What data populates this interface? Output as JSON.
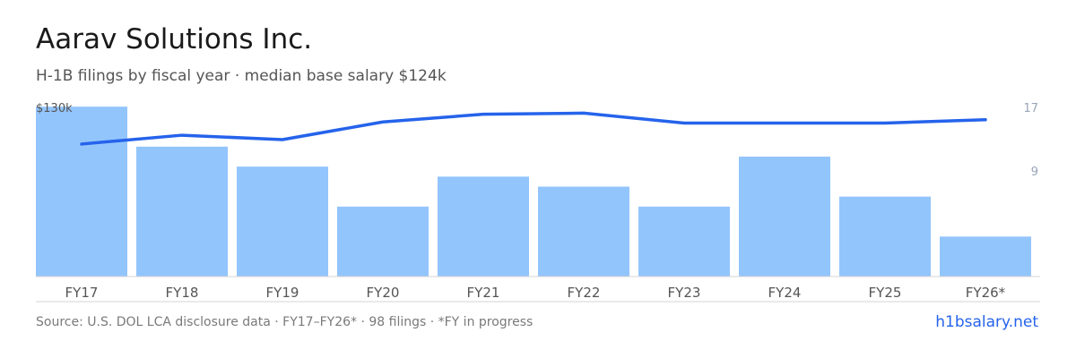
{
  "header": {
    "title": "Aarav Solutions Inc.",
    "subtitle": "H-1B filings by fiscal year · median base salary $124k"
  },
  "footer": {
    "source": "Source: U.S. DOL LCA disclosure data · FY17–FY26* · 98 filings · *FY in progress",
    "brand": "h1bsalary.net"
  },
  "colors": {
    "bar": "#93c5fd",
    "line": "#2563eb",
    "axis_text": "#555555",
    "right_axis_text": "#9aa5b8",
    "baseline": "#d4d4d4"
  },
  "chart_data": {
    "type": "bar",
    "categories": [
      "FY17",
      "FY18",
      "FY19",
      "FY20",
      "FY21",
      "FY22",
      "FY23",
      "FY24",
      "FY25",
      "FY26*"
    ],
    "series": [
      {
        "type": "bar",
        "axis": "right",
        "values": [
          17,
          13,
          11,
          7,
          10,
          9,
          7,
          12,
          8,
          4
        ]
      },
      {
        "type": "line",
        "axis": "left",
        "values": [
          113,
          117,
          115,
          123,
          126.5,
          127,
          122.5,
          122.5,
          122.5,
          124
        ]
      }
    ],
    "left_axis": {
      "label": "$130k",
      "max": 130
    },
    "right_axis": {
      "labels": [
        "17",
        "9"
      ],
      "ticks": [
        17,
        9
      ],
      "max": 18
    },
    "grid": false
  }
}
